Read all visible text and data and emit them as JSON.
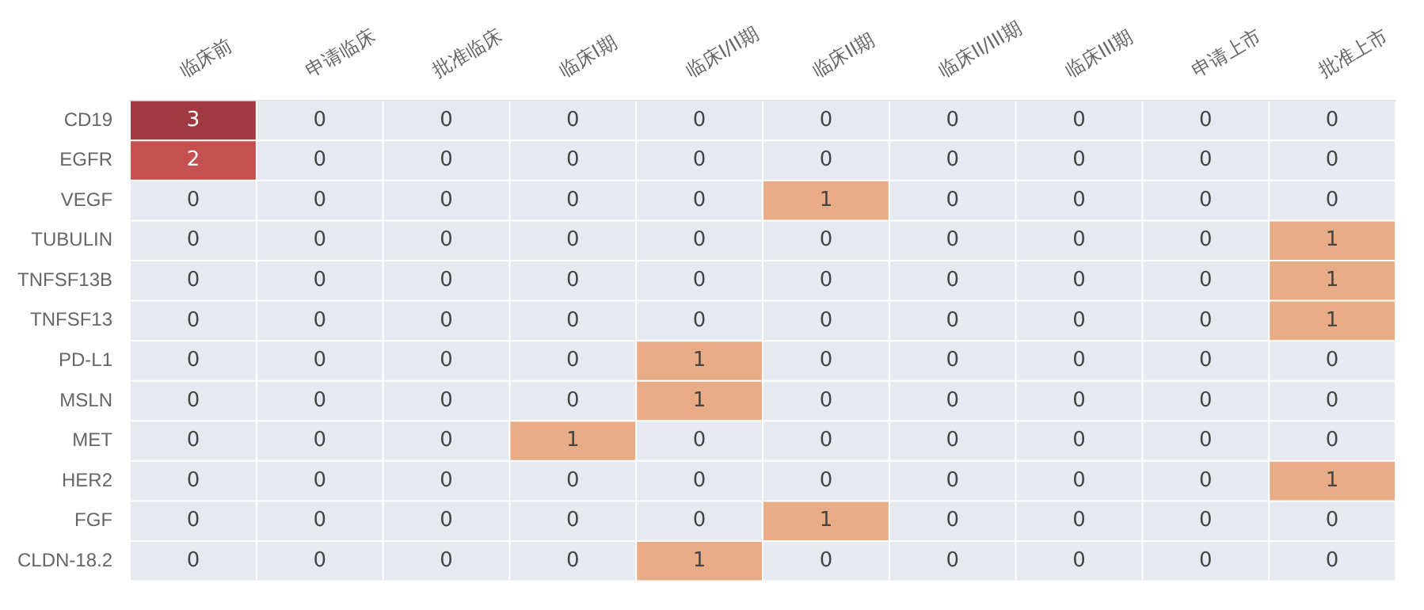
{
  "chart_data": {
    "type": "heatmap",
    "data_labels": true,
    "categories": [
      "临床前",
      "申请临床",
      "批准临床",
      "临床I期",
      "临床I/II期",
      "临床II期",
      "临床II/III期",
      "临床III期",
      "申请上市",
      "批准上市"
    ],
    "y_categories": [
      "CD19",
      "EGFR",
      "VEGF",
      "TUBULIN",
      "TNFSF13B",
      "TNFSF13",
      "PD-L1",
      "MSLN",
      "MET",
      "HER2",
      "FGF",
      "CLDN-18.2"
    ],
    "cells": [
      [
        3,
        0,
        0,
        0,
        0,
        0,
        0,
        0,
        0,
        0
      ],
      [
        2,
        0,
        0,
        0,
        0,
        0,
        0,
        0,
        0,
        0
      ],
      [
        0,
        0,
        0,
        0,
        0,
        1,
        0,
        0,
        0,
        0
      ],
      [
        0,
        0,
        0,
        0,
        0,
        0,
        0,
        0,
        0,
        1
      ],
      [
        0,
        0,
        0,
        0,
        0,
        0,
        0,
        0,
        0,
        1
      ],
      [
        0,
        0,
        0,
        0,
        0,
        0,
        0,
        0,
        0,
        1
      ],
      [
        0,
        0,
        0,
        0,
        1,
        0,
        0,
        0,
        0,
        0
      ],
      [
        0,
        0,
        0,
        0,
        1,
        0,
        0,
        0,
        0,
        0
      ],
      [
        0,
        0,
        0,
        1,
        0,
        0,
        0,
        0,
        0,
        0
      ],
      [
        0,
        0,
        0,
        0,
        0,
        0,
        0,
        0,
        0,
        1
      ],
      [
        0,
        0,
        0,
        0,
        0,
        1,
        0,
        0,
        0,
        0
      ],
      [
        0,
        0,
        0,
        0,
        1,
        0,
        0,
        0,
        0,
        0
      ]
    ]
  }
}
